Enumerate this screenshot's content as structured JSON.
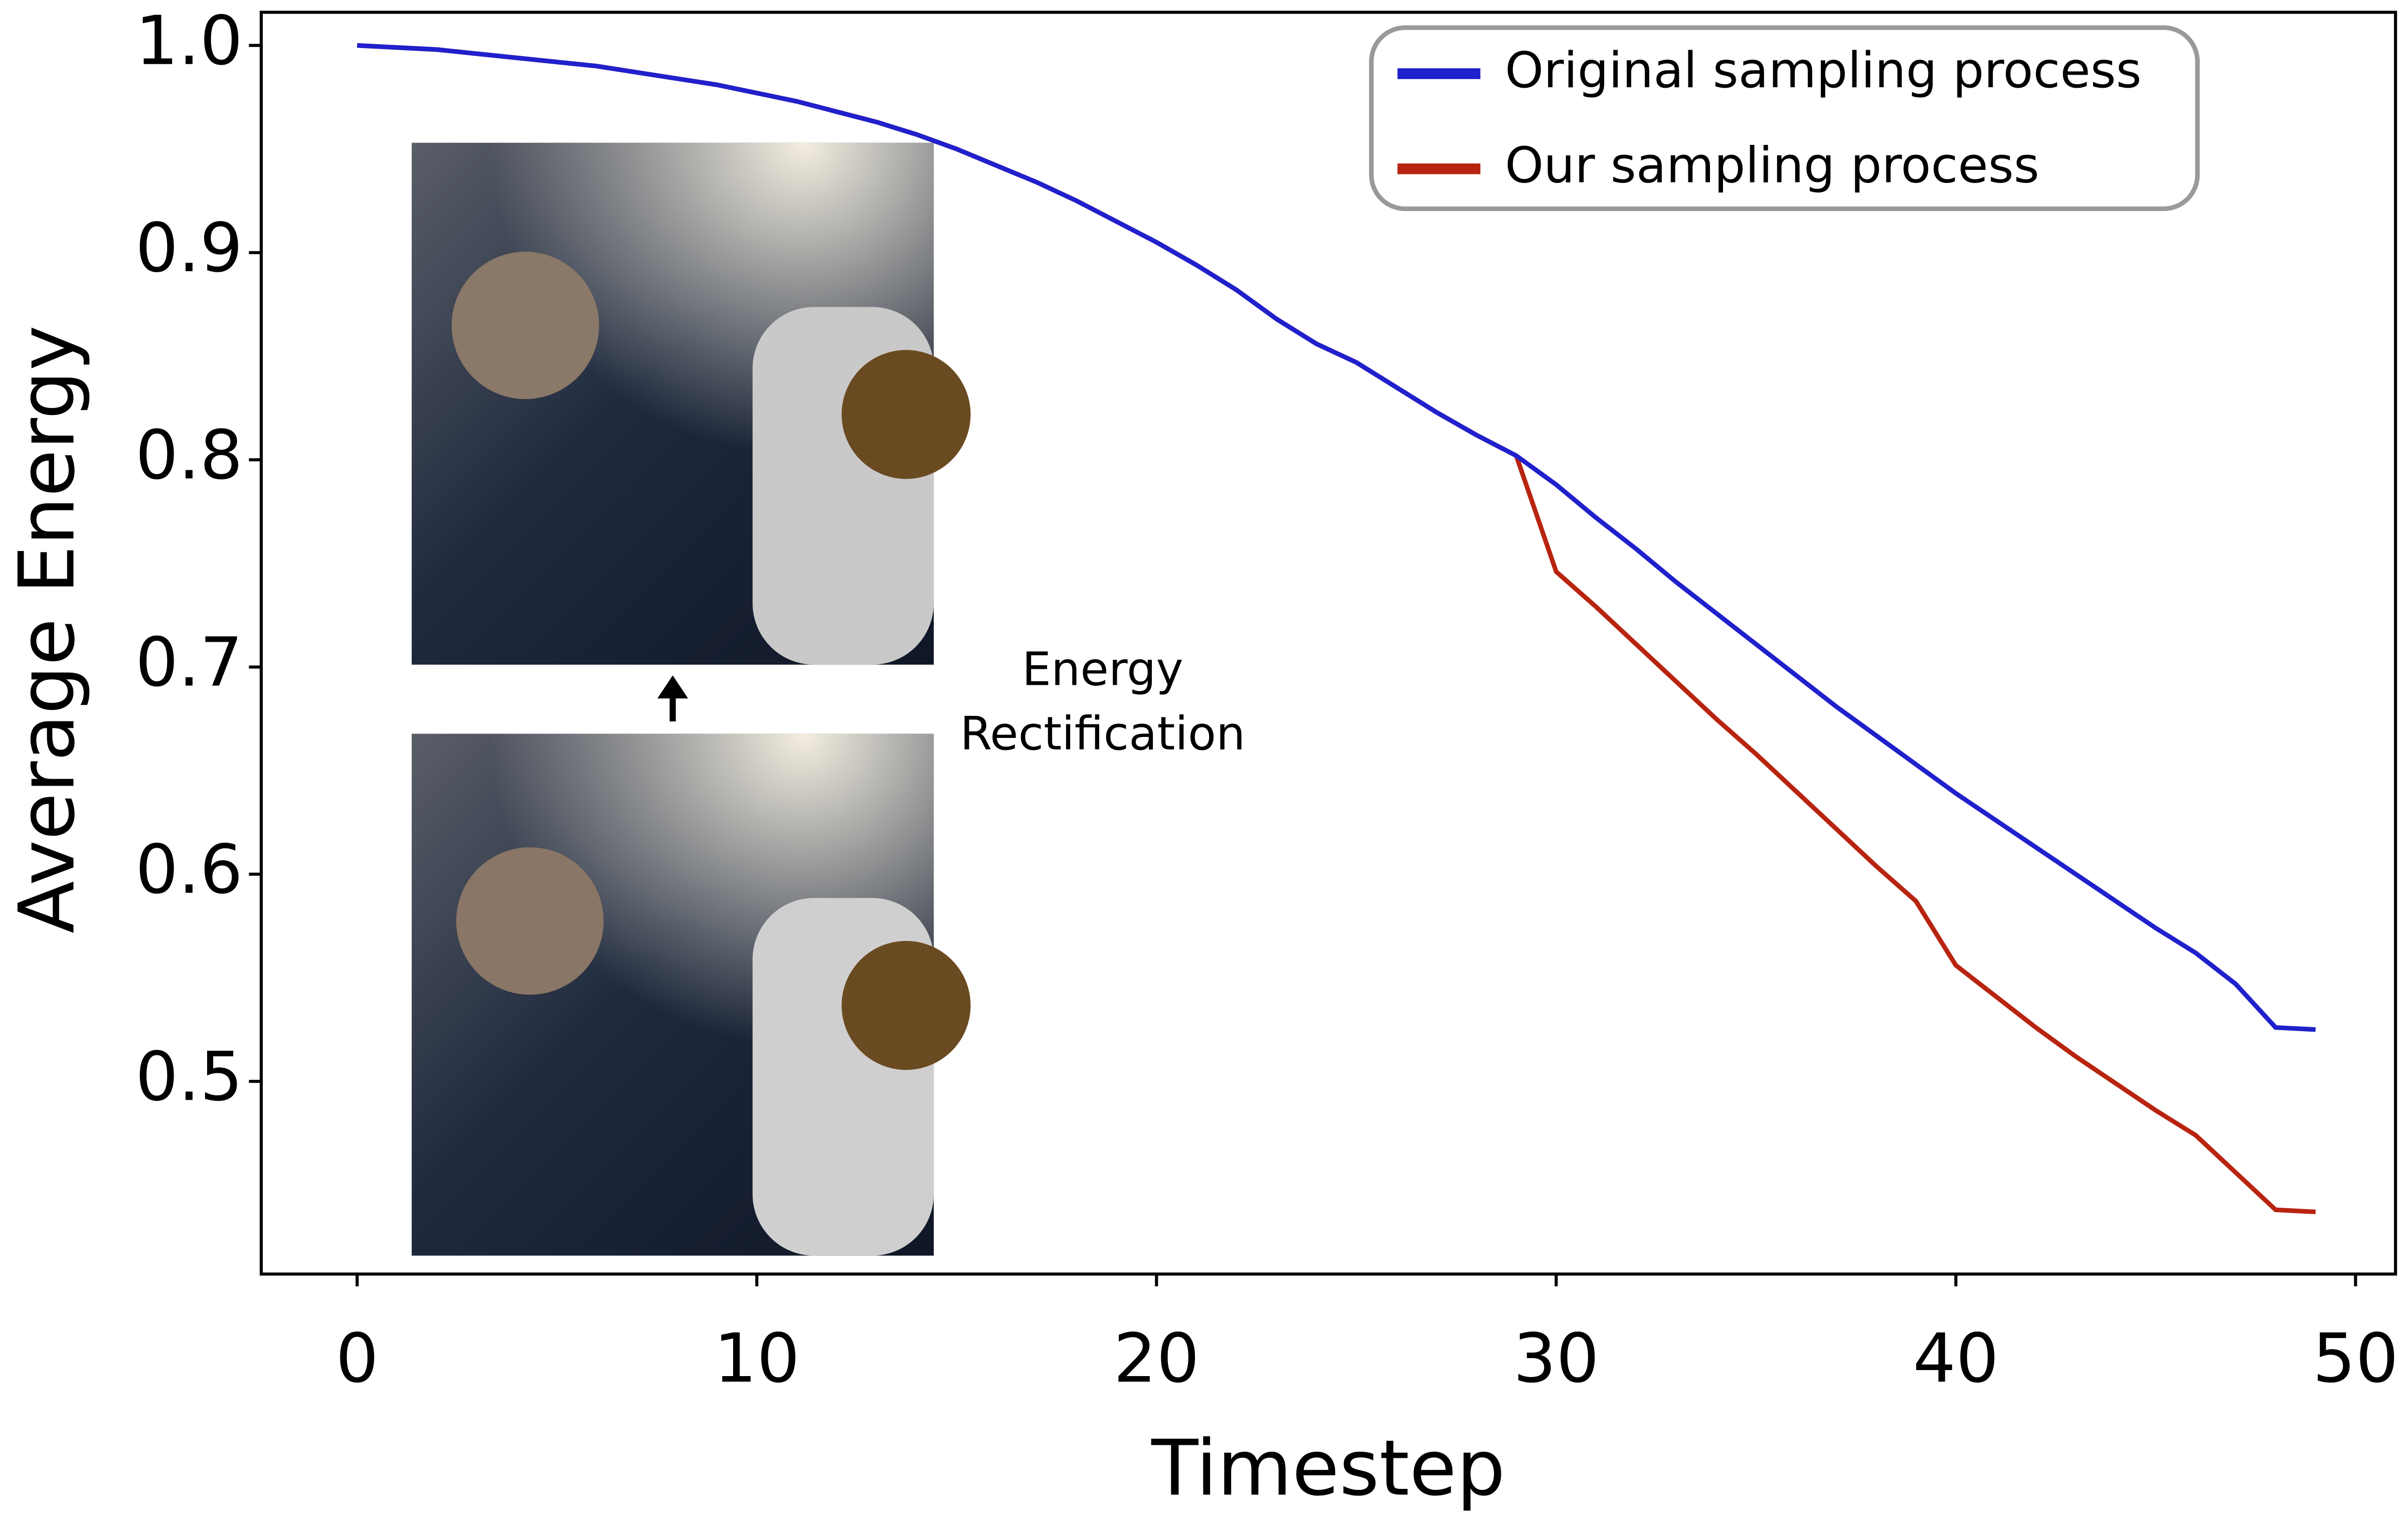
{
  "chart_data": {
    "type": "line",
    "xlabel": "Timestep",
    "ylabel": "Average Energy",
    "xlim": [
      -2.4,
      51
    ],
    "ylim": [
      0.407,
      1.016
    ],
    "xticks": [
      0,
      10,
      20,
      30,
      40,
      50
    ],
    "yticks": [
      {
        "value": 0.5,
        "label": "0.5"
      },
      {
        "value": 0.6,
        "label": "0.6"
      },
      {
        "value": 0.7,
        "label": "0.7"
      },
      {
        "value": 0.8,
        "label": "0.8"
      },
      {
        "value": 0.9,
        "label": "0.9"
      },
      {
        "value": 1.0,
        "label": "1.0"
      }
    ],
    "legend_position": "upper right",
    "annotation": [
      "Energy",
      "Rectification"
    ],
    "x": [
      0,
      1,
      2,
      3,
      4,
      5,
      6,
      7,
      8,
      9,
      10,
      11,
      12,
      13,
      14,
      15,
      16,
      17,
      18,
      19,
      20,
      21,
      22,
      23,
      24,
      25,
      26,
      27,
      28,
      29,
      30,
      31,
      32,
      33,
      34,
      35,
      36,
      37,
      38,
      39,
      40,
      41,
      42,
      43,
      44,
      45,
      46,
      47,
      48,
      49
    ],
    "series": [
      {
        "name": "Our sampling process",
        "color": "#b8240f",
        "values": [
          1.0,
          0.999,
          0.998,
          0.996,
          0.994,
          0.992,
          0.99,
          0.987,
          0.984,
          0.981,
          0.977,
          0.973,
          0.968,
          0.963,
          0.957,
          0.95,
          0.942,
          0.934,
          0.925,
          0.915,
          0.905,
          0.894,
          0.882,
          0.868,
          0.856,
          0.847,
          0.835,
          0.823,
          0.812,
          0.802,
          0.746,
          0.729,
          0.711,
          0.693,
          0.675,
          0.658,
          0.64,
          0.622,
          0.604,
          0.587,
          0.556,
          0.541,
          0.526,
          0.512,
          0.499,
          0.486,
          0.474,
          0.456,
          0.438,
          0.437
        ]
      },
      {
        "name": "Original sampling process",
        "color": "#2020cc",
        "values": [
          1.0,
          0.999,
          0.998,
          0.996,
          0.994,
          0.992,
          0.99,
          0.987,
          0.984,
          0.981,
          0.977,
          0.973,
          0.968,
          0.963,
          0.957,
          0.95,
          0.942,
          0.934,
          0.925,
          0.915,
          0.905,
          0.894,
          0.882,
          0.868,
          0.856,
          0.847,
          0.835,
          0.823,
          0.812,
          0.802,
          0.788,
          0.772,
          0.757,
          0.741,
          0.726,
          0.711,
          0.696,
          0.681,
          0.667,
          0.653,
          0.639,
          0.626,
          0.613,
          0.6,
          0.587,
          0.574,
          0.562,
          0.547,
          0.526,
          0.525
        ]
      }
    ]
  }
}
